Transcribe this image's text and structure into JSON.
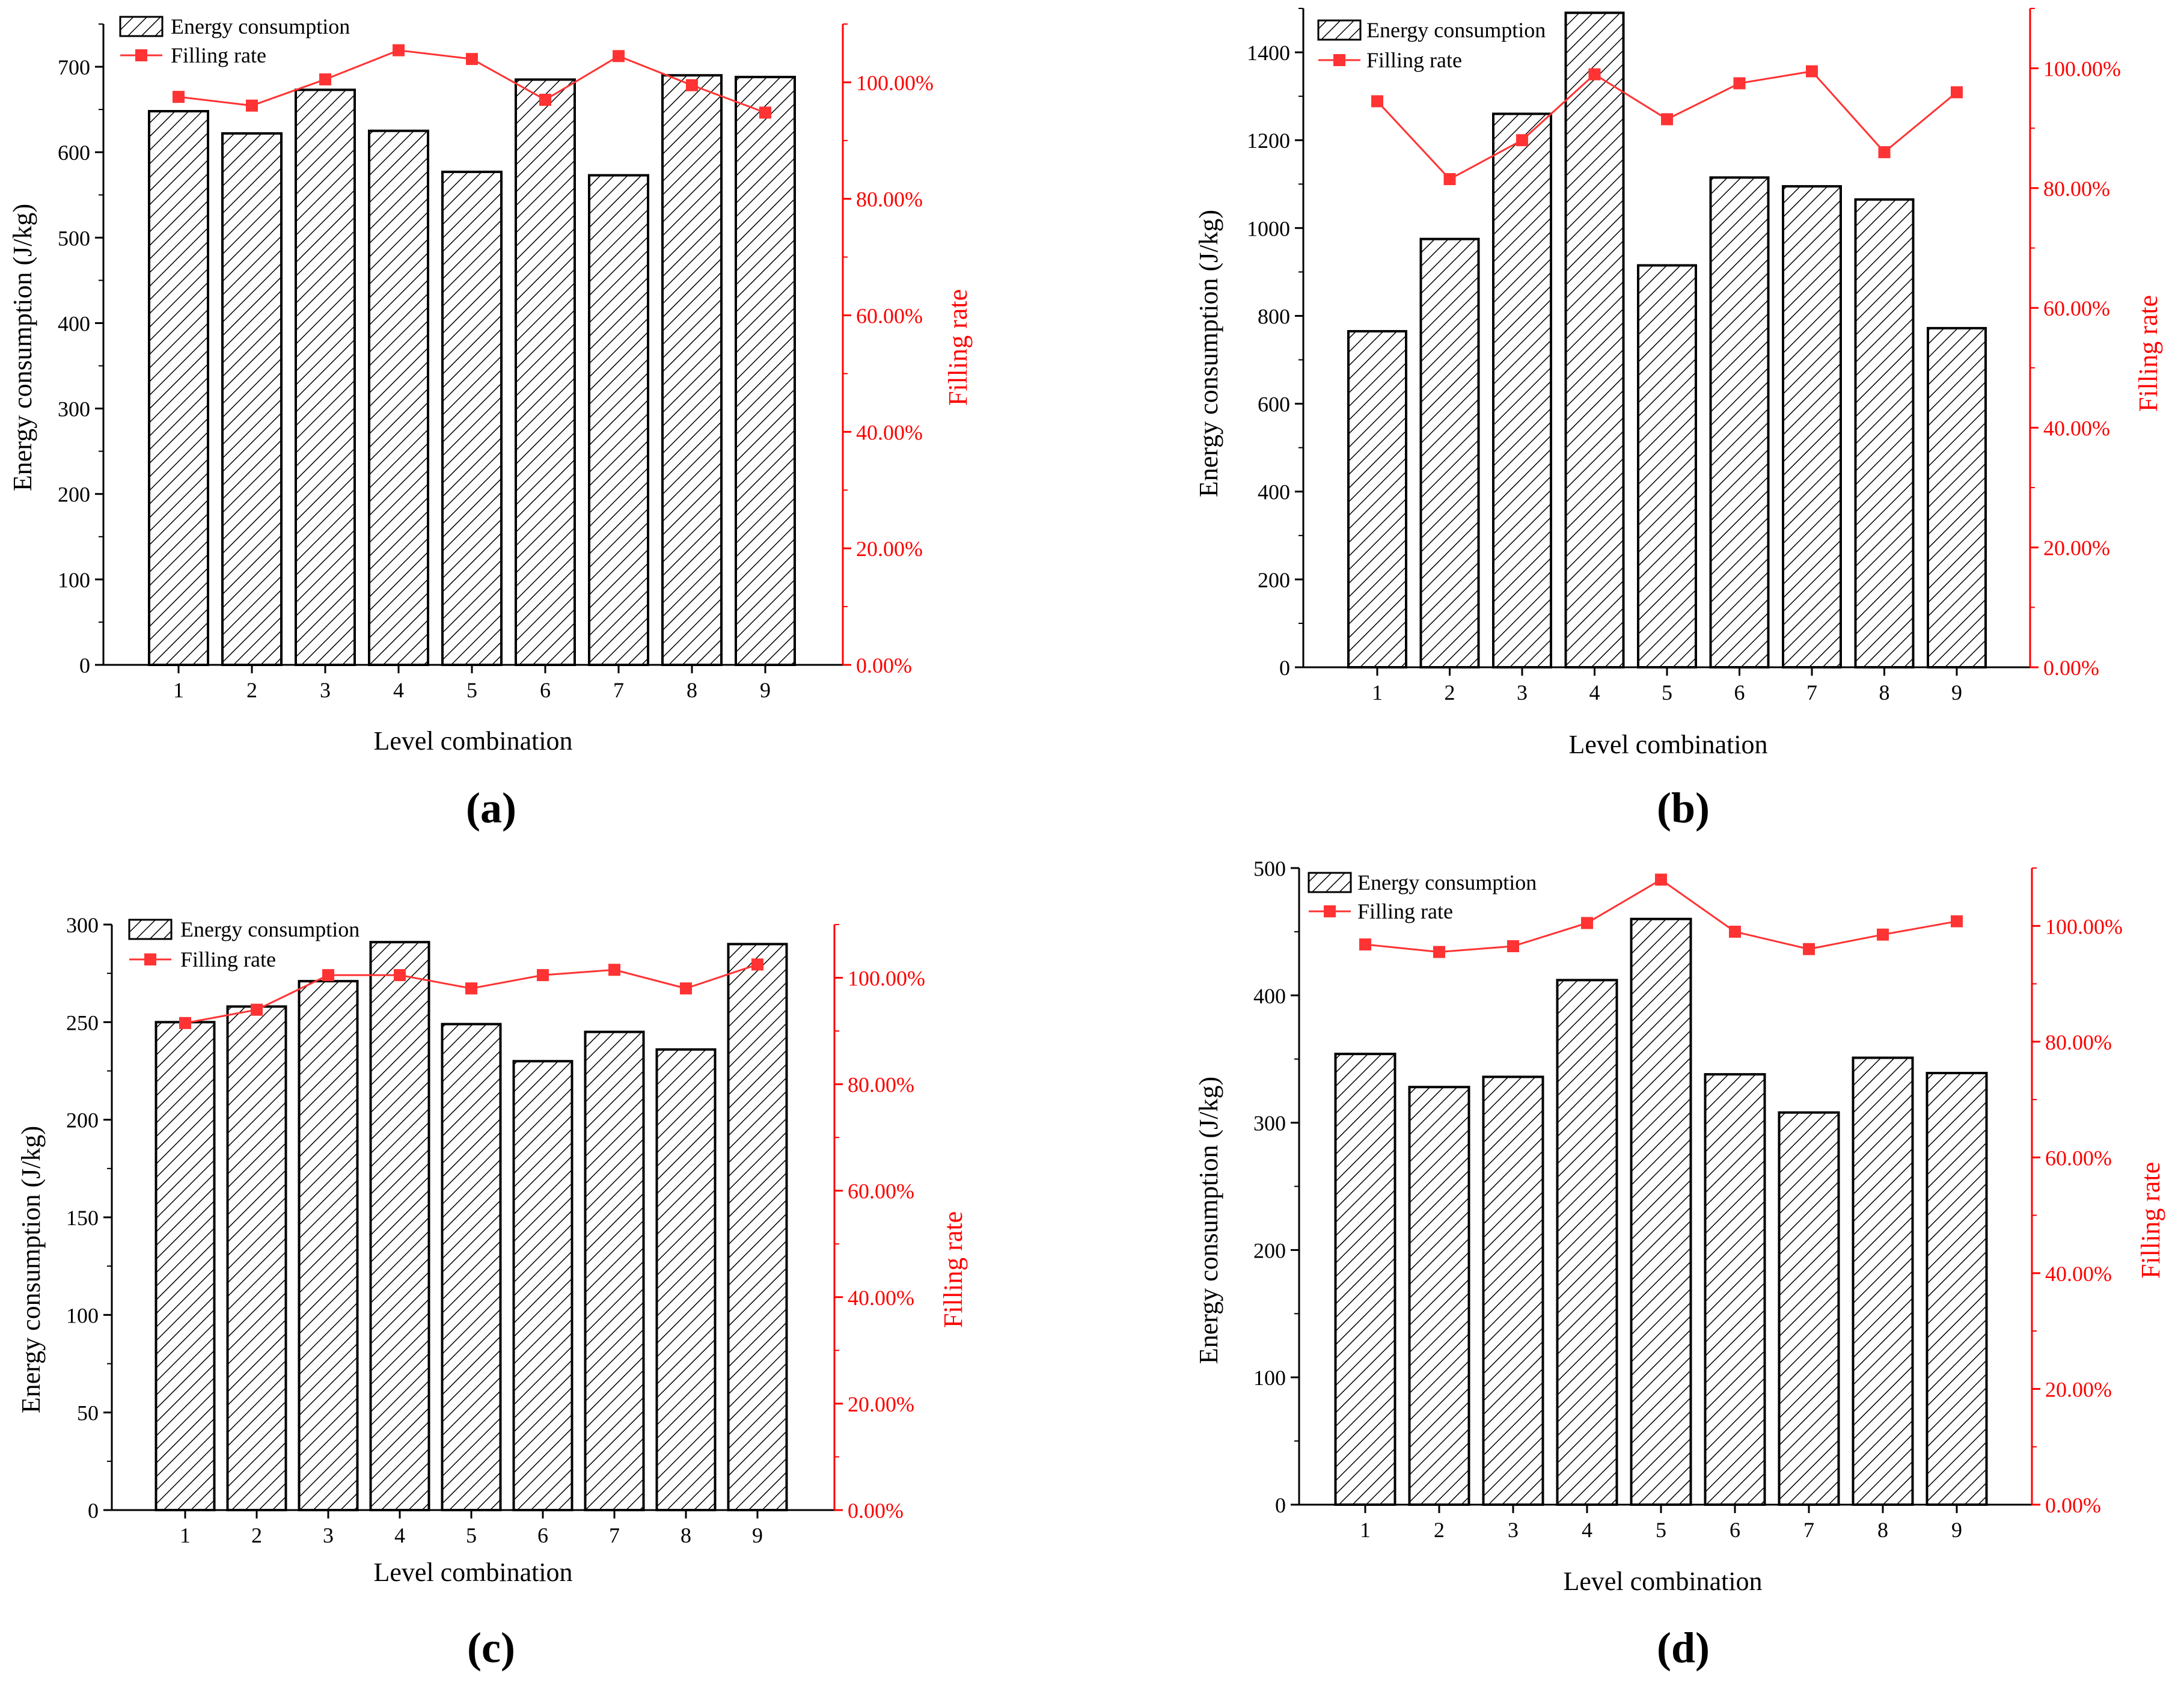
{
  "colors": {
    "bar_stroke": "#000000",
    "bar_hatch": "#000000",
    "line": "#ff3333",
    "right_axis": "#ff0000"
  },
  "chart_data": [
    {
      "type": "bar+line",
      "panel_label": "(a)",
      "categories": [
        "1",
        "2",
        "3",
        "4",
        "5",
        "6",
        "7",
        "8",
        "9"
      ],
      "xlabel": "Level combination",
      "ylabel": "Energy consumption (J/kg)",
      "y2label": "Filling rate",
      "ylim": [
        0,
        750
      ],
      "yticks": [
        0,
        100,
        200,
        300,
        400,
        500,
        600,
        700
      ],
      "y2lim": [
        0,
        1.1
      ],
      "y2ticks": [
        0,
        0.2,
        0.4,
        0.6,
        0.8,
        1.0
      ],
      "y2tick_labels": [
        "0.00%",
        "20.00%",
        "40.00%",
        "60.00%",
        "80.00%",
        "100.00%"
      ],
      "series": [
        {
          "name": "Energy consumption",
          "kind": "bar",
          "values": [
            648,
            622,
            673,
            625,
            577,
            685,
            573,
            690,
            688
          ]
        },
        {
          "name": "Filling rate",
          "kind": "line",
          "axis": "right",
          "values": [
            0.975,
            0.96,
            1.005,
            1.055,
            1.04,
            0.97,
            1.045,
            0.995,
            0.948
          ]
        }
      ]
    },
    {
      "type": "bar+line",
      "panel_label": "(b)",
      "categories": [
        "1",
        "2",
        "3",
        "4",
        "5",
        "6",
        "7",
        "8",
        "9"
      ],
      "xlabel": "Level combination",
      "ylabel": "Energy consumption (J/kg)",
      "y2label": "Filling rate",
      "ylim": [
        0,
        1500
      ],
      "yticks": [
        0,
        200,
        400,
        600,
        800,
        1000,
        1200,
        1400
      ],
      "y2lim": [
        0,
        1.1
      ],
      "y2ticks": [
        0,
        0.2,
        0.4,
        0.6,
        0.8,
        1.0
      ],
      "y2tick_labels": [
        "0.00%",
        "20.00%",
        "40.00%",
        "60.00%",
        "80.00%",
        "100.00%"
      ],
      "series": [
        {
          "name": "Energy consumption",
          "kind": "bar",
          "values": [
            765,
            975,
            1260,
            1490,
            915,
            1115,
            1095,
            1065,
            772
          ]
        },
        {
          "name": "Filling rate",
          "kind": "line",
          "axis": "right",
          "values": [
            0.945,
            0.815,
            0.88,
            0.99,
            0.915,
            0.975,
            0.995,
            0.86,
            0.96
          ]
        }
      ]
    },
    {
      "type": "bar+line",
      "panel_label": "(c)",
      "categories": [
        "1",
        "2",
        "3",
        "4",
        "5",
        "6",
        "7",
        "8",
        "9"
      ],
      "xlabel": "Level combination",
      "ylabel": "Energy consumption (J/kg)",
      "y2label": "Filling rate",
      "ylim": [
        0,
        300
      ],
      "yticks": [
        0,
        50,
        100,
        150,
        200,
        250,
        300
      ],
      "y2lim": [
        0,
        1.1
      ],
      "y2ticks": [
        0,
        0.2,
        0.4,
        0.6,
        0.8,
        1.0
      ],
      "y2tick_labels": [
        "0.00%",
        "20.00%",
        "40.00%",
        "60.00%",
        "80.00%",
        "100.00%"
      ],
      "series": [
        {
          "name": "Energy consumption",
          "kind": "bar",
          "values": [
            250,
            258,
            271,
            291,
            249,
            230,
            245,
            236,
            290
          ]
        },
        {
          "name": "Filling rate",
          "kind": "line",
          "axis": "right",
          "values": [
            0.915,
            0.94,
            1.005,
            1.005,
            0.98,
            1.005,
            1.015,
            0.98,
            1.025
          ]
        }
      ]
    },
    {
      "type": "bar+line",
      "panel_label": "(d)",
      "categories": [
        "1",
        "2",
        "3",
        "4",
        "5",
        "6",
        "7",
        "8",
        "9"
      ],
      "xlabel": "Level combination",
      "ylabel": "Energy consumption (J/kg)",
      "y2label": "Filling rate",
      "ylim": [
        0,
        500
      ],
      "yticks": [
        0,
        100,
        200,
        300,
        400,
        500
      ],
      "y2lim": [
        0,
        1.1
      ],
      "y2ticks": [
        0,
        0.2,
        0.4,
        0.6,
        0.8,
        1.0
      ],
      "y2tick_labels": [
        "0.00%",
        "20.00%",
        "40.00%",
        "60.00%",
        "80.00%",
        "100.00%"
      ],
      "series": [
        {
          "name": "Energy consumption",
          "kind": "bar",
          "values": [
            354,
            328,
            336,
            412,
            460,
            338,
            308,
            351,
            339
          ]
        },
        {
          "name": "Filling rate",
          "kind": "line",
          "axis": "right",
          "values": [
            0.968,
            0.955,
            0.965,
            1.005,
            1.08,
            0.99,
            0.96,
            0.985,
            1.008
          ]
        }
      ]
    }
  ]
}
